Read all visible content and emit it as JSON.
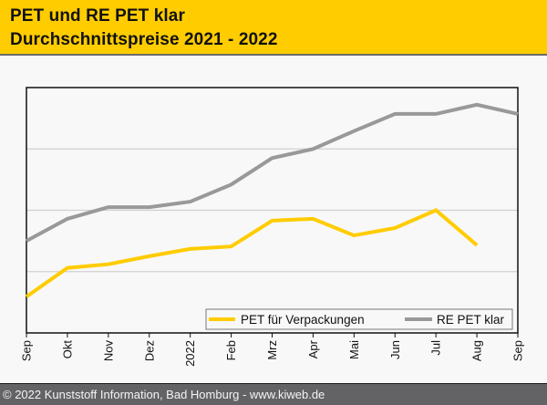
{
  "header": {
    "title_line1": "PET und RE PET klar",
    "title_line2": "Durchschnittspreise 2021 - 2022"
  },
  "footer": {
    "text": "© 2022 Kunststoff Information, Bad Homburg - www.kiweb.de"
  },
  "colors": {
    "header_bg": "#ffcc00",
    "pet_series": "#ffcc00",
    "re_pet_series": "#999999",
    "footer_bg": "#636366",
    "gridline": "#d0d0d0"
  },
  "chart_data": {
    "type": "line",
    "title": "PET und RE PET klar Durchschnittspreise 2021 - 2022",
    "xlabel": "",
    "ylabel": "",
    "y_scale_note": "No y-axis labels shown; values are relative estimates where gridlines = 1, 2, 3",
    "ylim": [
      0,
      4
    ],
    "yticks_gridlines": [
      1,
      2,
      3
    ],
    "grid": true,
    "legend_position": "bottom-right",
    "categories": [
      "Sep",
      "Okt",
      "Nov",
      "Dez",
      "2022",
      "Feb",
      "Mrz",
      "Apr",
      "Mai",
      "Jun",
      "Jul",
      "Aug",
      "Sep"
    ],
    "series": [
      {
        "name": "PET für Verpackungen",
        "color": "#ffcc00",
        "values": [
          0.59,
          1.06,
          1.12,
          1.25,
          1.37,
          1.41,
          1.83,
          1.86,
          1.59,
          1.71,
          2.0,
          1.43,
          null
        ]
      },
      {
        "name": "RE PET klar",
        "color": "#999999",
        "values": [
          1.5,
          1.86,
          2.05,
          2.05,
          2.14,
          2.42,
          2.85,
          3.0,
          3.29,
          3.57,
          3.57,
          3.72,
          3.57
        ]
      }
    ]
  }
}
